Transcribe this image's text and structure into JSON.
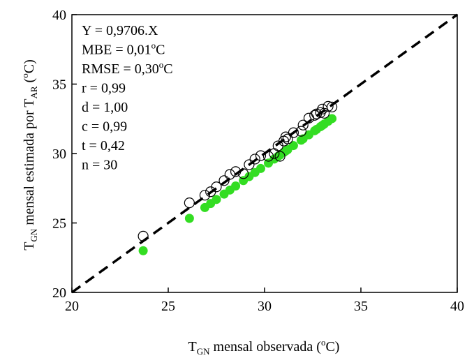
{
  "chart_data": {
    "type": "scatter",
    "xlabel": {
      "main": "T",
      "sub": "GN",
      "rest": " mensal observada (",
      "sup": "o",
      "end": "C)"
    },
    "ylabel": {
      "main": "T",
      "sub": "GN",
      "mid": " mensal estimada por T",
      "sub2": "AR",
      "rest": " (",
      "sup": "o",
      "end": "C)"
    },
    "xlim": [
      20,
      40
    ],
    "ylim": [
      20,
      40
    ],
    "xticks": [
      "20",
      "25",
      "30",
      "35",
      "40"
    ],
    "yticks": [
      "20",
      "25",
      "30",
      "35",
      "40"
    ],
    "grid": false,
    "stats": [
      {
        "text": "Y = 0,9706.X"
      },
      {
        "text": "MBE = 0,01",
        "sup": "o",
        "after": "C"
      },
      {
        "text": "RMSE = 0,30",
        "sup": "o",
        "after": "C"
      },
      {
        "text": "r = 0,99"
      },
      {
        "text": "d = 1,00"
      },
      {
        "text": "c = 0,99"
      },
      {
        "text": "t = 0,42"
      },
      {
        "text": "n = 30"
      }
    ],
    "identity_line": {
      "x": [
        20,
        40
      ],
      "y": [
        20,
        40
      ],
      "color": "#000000",
      "style": "dashed"
    },
    "regression_slope": 0.9706,
    "regression_color": "#33dd22",
    "marker_color": "#000000",
    "points": [
      {
        "x": 23.7,
        "y": 24.05
      },
      {
        "x": 26.1,
        "y": 26.45
      },
      {
        "x": 26.9,
        "y": 27.0
      },
      {
        "x": 27.2,
        "y": 27.25
      },
      {
        "x": 27.5,
        "y": 27.6
      },
      {
        "x": 27.9,
        "y": 28.05
      },
      {
        "x": 28.2,
        "y": 28.5
      },
      {
        "x": 28.5,
        "y": 28.7
      },
      {
        "x": 28.9,
        "y": 28.55
      },
      {
        "x": 29.2,
        "y": 29.2
      },
      {
        "x": 29.5,
        "y": 29.6
      },
      {
        "x": 29.8,
        "y": 29.85
      },
      {
        "x": 30.2,
        "y": 29.8
      },
      {
        "x": 30.5,
        "y": 30.0
      },
      {
        "x": 30.8,
        "y": 29.8
      },
      {
        "x": 30.7,
        "y": 30.55
      },
      {
        "x": 31.0,
        "y": 30.9
      },
      {
        "x": 31.1,
        "y": 31.2
      },
      {
        "x": 31.2,
        "y": 31.05
      },
      {
        "x": 31.5,
        "y": 31.5
      },
      {
        "x": 31.9,
        "y": 31.6
      },
      {
        "x": 32.0,
        "y": 32.05
      },
      {
        "x": 32.3,
        "y": 32.55
      },
      {
        "x": 32.6,
        "y": 32.75
      },
      {
        "x": 32.7,
        "y": 32.85
      },
      {
        "x": 33.0,
        "y": 33.2
      },
      {
        "x": 33.1,
        "y": 32.9
      },
      {
        "x": 33.3,
        "y": 33.4
      },
      {
        "x": 33.5,
        "y": 33.35
      },
      {
        "x": 32.9,
        "y": 32.95
      }
    ]
  }
}
